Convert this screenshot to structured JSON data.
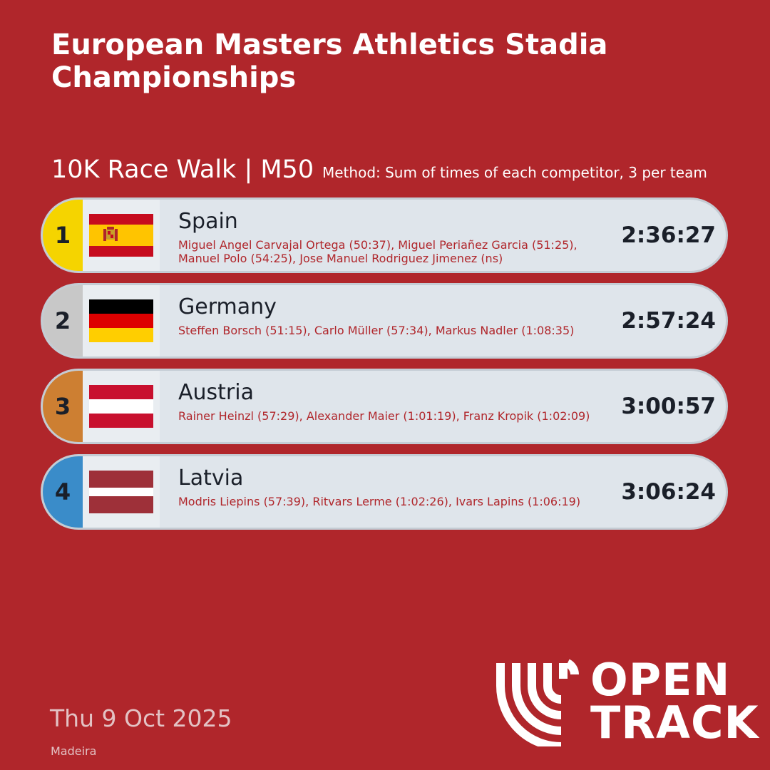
{
  "header": {
    "title": "European Masters Athletics Stadia Championships",
    "event": "10K Race Walk | M50",
    "method": "Method: Sum of times of each competitor, 3 per team"
  },
  "results": [
    {
      "rank": "1",
      "country": "Spain",
      "flag": "spain-flag-icon",
      "rank_color": "#f5d400",
      "members": "Miguel Angel Carvajal Ortega (50:37), Miguel Periañez Garcia (51:25), Manuel Polo (54:25), Jose Manuel Rodriguez Jimenez (ns)",
      "time": "2:36:27"
    },
    {
      "rank": "2",
      "country": "Germany",
      "flag": "germany-flag-icon",
      "rank_color": "#c8c8c8",
      "members": "Steffen Borsch (51:15), Carlo Müller (57:34), Markus Nadler (1:08:35)",
      "time": "2:57:24"
    },
    {
      "rank": "3",
      "country": "Austria",
      "flag": "austria-flag-icon",
      "rank_color": "#cd7f32",
      "members": "Rainer Heinzl (57:29), Alexander Maier (1:01:19), Franz Kropik (1:02:09)",
      "time": "3:00:57"
    },
    {
      "rank": "4",
      "country": "Latvia",
      "flag": "latvia-flag-icon",
      "rank_color": "#3a8cc9",
      "members": "Modris Liepins (57:39), Ritvars Lerme (1:02:26), Ivars Lapins (1:06:19)",
      "time": "3:06:24"
    }
  ],
  "footer": {
    "date": "Thu 9 Oct 2025",
    "venue": "Madeira",
    "logo_line1": "OPEN",
    "logo_line2": "TRACK"
  },
  "colors": {
    "background": "#b0262b",
    "row": "#dfe5eb",
    "text_dark": "#1a1f29"
  }
}
